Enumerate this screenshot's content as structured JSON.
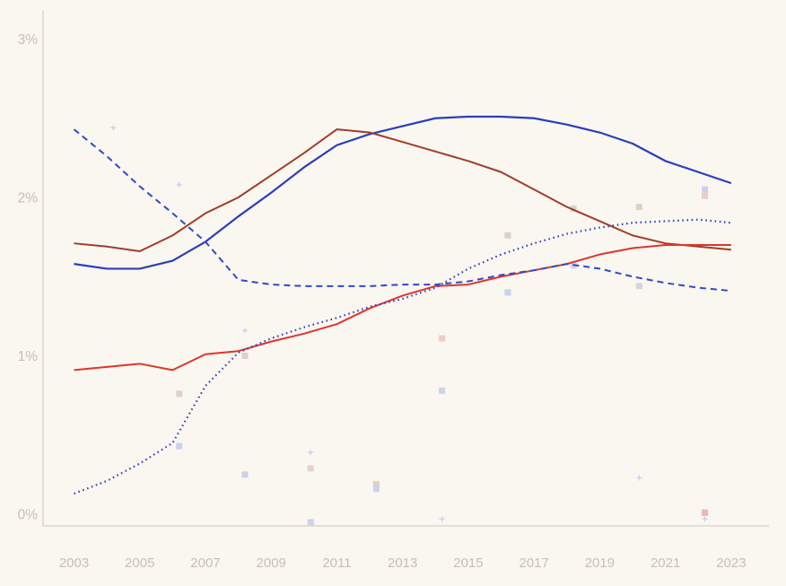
{
  "chart_data": {
    "type": "line",
    "x": [
      2003,
      2004,
      2005,
      2006,
      2007,
      2008,
      2009,
      2010,
      2011,
      2012,
      2013,
      2014,
      2015,
      2016,
      2017,
      2018,
      2019,
      2020,
      2021,
      2022,
      2023
    ],
    "title": "",
    "xlabel": "",
    "ylabel": "",
    "grid": false,
    "legend": "none",
    "xlim": [
      2002.1,
      2024.6
    ],
    "ylim": [
      -0.075,
      3.18
    ],
    "background_color": "#faf7f1",
    "axis_line_color": "#d7d0c4",
    "tick_label_color": "#c7bfb2",
    "y_axis": {
      "ticks": [
        {
          "label": "0%",
          "value": 0
        },
        {
          "label": "1%",
          "value": 1
        },
        {
          "label": "2%",
          "value": 2
        },
        {
          "label": "3%",
          "value": 3
        }
      ]
    },
    "x_axis": {
      "ticks": [
        {
          "label": "2003",
          "value": 2003
        },
        {
          "label": "2005",
          "value": 2005
        },
        {
          "label": "2007",
          "value": 2007
        },
        {
          "label": "2009",
          "value": 2009
        },
        {
          "label": "2011",
          "value": 2011
        },
        {
          "label": "2013",
          "value": 2013
        },
        {
          "label": "2015",
          "value": 2015
        },
        {
          "label": "2017",
          "value": 2017
        },
        {
          "label": "2019",
          "value": 2019
        },
        {
          "label": "2021",
          "value": 2021
        },
        {
          "label": "2023",
          "value": 2023
        }
      ]
    },
    "series": [
      {
        "name": "blue-solid",
        "style": "solid",
        "color": "#2b3dbd",
        "width": 2.2,
        "values": [
          1.58,
          1.55,
          1.55,
          1.6,
          1.72,
          1.88,
          2.03,
          2.19,
          2.33,
          2.4,
          2.45,
          2.5,
          2.51,
          2.51,
          2.5,
          2.46,
          2.41,
          2.34,
          2.23,
          2.16,
          2.09
        ]
      },
      {
        "name": "brick-solid",
        "style": "solid",
        "color": "#a23c28",
        "width": 2,
        "values": [
          1.71,
          1.69,
          1.66,
          1.76,
          1.9,
          2.0,
          2.14,
          2.28,
          2.43,
          2.41,
          2.35,
          2.29,
          2.23,
          2.16,
          2.05,
          1.94,
          1.85,
          1.76,
          1.71,
          1.69,
          1.67
        ]
      },
      {
        "name": "red-solid",
        "style": "solid",
        "color": "#df342b",
        "width": 2,
        "values": [
          0.91,
          0.93,
          0.95,
          0.91,
          1.01,
          1.03,
          1.09,
          1.14,
          1.2,
          1.3,
          1.38,
          1.44,
          1.45,
          1.5,
          1.54,
          1.58,
          1.64,
          1.68,
          1.7,
          1.7,
          1.7
        ]
      },
      {
        "name": "blue-dashed",
        "style": "dashed",
        "color": "#2e49c9",
        "width": 2,
        "values": [
          2.43,
          2.26,
          2.07,
          1.9,
          1.72,
          1.48,
          1.45,
          1.44,
          1.44,
          1.44,
          1.45,
          1.45,
          1.47,
          1.51,
          1.54,
          1.58,
          1.55,
          1.5,
          1.46,
          1.43,
          1.41
        ]
      },
      {
        "name": "blue-dotted",
        "style": "dotted",
        "color": "#3244c0",
        "width": 2.2,
        "values": [
          0.13,
          0.21,
          0.32,
          0.45,
          0.81,
          1.02,
          1.11,
          1.18,
          1.24,
          1.31,
          1.36,
          1.43,
          1.55,
          1.64,
          1.71,
          1.77,
          1.81,
          1.84,
          1.85,
          1.86,
          1.84
        ]
      }
    ],
    "scatter": [
      {
        "x": 2004.2,
        "y": 2.44,
        "shape": "sparkle",
        "color": "#c9d2f0"
      },
      {
        "x": 2006.2,
        "y": 2.08,
        "shape": "sparkle",
        "color": "#c9d2f0"
      },
      {
        "x": 2006.2,
        "y": 0.76,
        "shape": "square",
        "color": "#ded1c2"
      },
      {
        "x": 2006.2,
        "y": 0.43,
        "shape": "square",
        "color": "#c7d0ec"
      },
      {
        "x": 2008.2,
        "y": 1.16,
        "shape": "sparkle",
        "color": "#c9d2f0"
      },
      {
        "x": 2008.2,
        "y": 1.0,
        "shape": "square",
        "color": "#ddcfc0"
      },
      {
        "x": 2008.2,
        "y": 0.25,
        "shape": "square",
        "color": "#c7d0ec"
      },
      {
        "x": 2010.2,
        "y": 0.39,
        "shape": "sparkle",
        "color": "#c9d2f0"
      },
      {
        "x": 2010.2,
        "y": 0.29,
        "shape": "square",
        "color": "#e6cec6"
      },
      {
        "x": 2010.2,
        "y": -0.05,
        "shape": "square",
        "color": "#c7d0ec"
      },
      {
        "x": 2012.2,
        "y": 0.19,
        "shape": "square",
        "color": "#dccec0"
      },
      {
        "x": 2012.2,
        "y": 0.16,
        "shape": "square",
        "color": "#c7d0ec"
      },
      {
        "x": 2014.2,
        "y": 1.11,
        "shape": "square",
        "color": "#ecc9c1"
      },
      {
        "x": 2014.2,
        "y": 0.78,
        "shape": "square",
        "color": "#c7d0ec"
      },
      {
        "x": 2014.2,
        "y": -0.03,
        "shape": "sparkle",
        "color": "#c9d2f0"
      },
      {
        "x": 2016.2,
        "y": 1.76,
        "shape": "square",
        "color": "#d9cfc4"
      },
      {
        "x": 2016.2,
        "y": 1.4,
        "shape": "square",
        "color": "#c7d0ec"
      },
      {
        "x": 2018.2,
        "y": 1.93,
        "shape": "square",
        "color": "#d9cfc4"
      },
      {
        "x": 2018.2,
        "y": 1.57,
        "shape": "square",
        "color": "#ccd3e9"
      },
      {
        "x": 2020.2,
        "y": 1.94,
        "shape": "square",
        "color": "#d9cfc4"
      },
      {
        "x": 2020.2,
        "y": 1.44,
        "shape": "square",
        "color": "#ccd3e9"
      },
      {
        "x": 2020.2,
        "y": 0.23,
        "shape": "sparkle",
        "color": "#c9d2f0"
      },
      {
        "x": 2022.2,
        "y": 2.05,
        "shape": "square",
        "color": "#c3cdee"
      },
      {
        "x": 2022.2,
        "y": 2.01,
        "shape": "square",
        "color": "#eccac2"
      },
      {
        "x": 2022.2,
        "y": 0.01,
        "shape": "square",
        "color": "#f0b0ab"
      },
      {
        "x": 2022.2,
        "y": -0.03,
        "shape": "sparkle",
        "color": "#c9d2f0"
      }
    ]
  }
}
